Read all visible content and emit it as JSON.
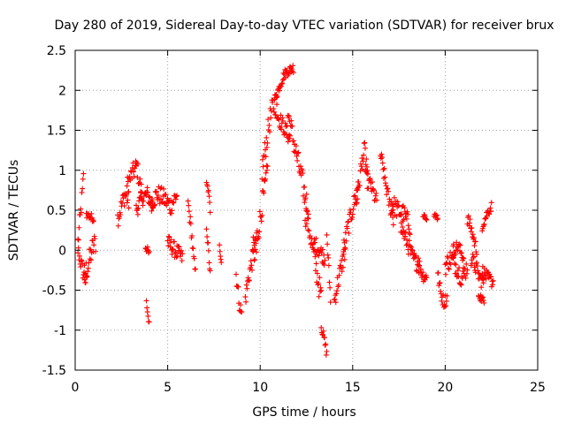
{
  "chart_data": {
    "type": "scatter",
    "title": "Day 280 of 2019, Sidereal Day-to-day VTEC variation (SDTVAR) for receiver brux",
    "xlabel": "GPS time / hours",
    "ylabel": "SDTVAR / TECUs",
    "xlim": [
      0,
      25
    ],
    "ylim": [
      -1.5,
      2.5
    ],
    "xticks": [
      0,
      5,
      10,
      15,
      20,
      25
    ],
    "yticks": [
      -1.5,
      -1,
      -0.5,
      0,
      0.5,
      1,
      1.5,
      2,
      2.5
    ],
    "xtick_labels": [
      "0",
      "5",
      "10",
      "15",
      "20",
      "25"
    ],
    "ytick_labels": [
      "-1.5",
      "-1",
      "-0.5",
      "0",
      "0.5",
      "1",
      "1.5",
      "2",
      "2.5"
    ],
    "grid": true,
    "legend": "none",
    "marker": "+",
    "color": "#ff0000",
    "series": [
      {
        "name": "SDTVAR",
        "segments": [
          {
            "x0": 0.15,
            "x1": 0.45,
            "y": [
              0.1,
              0.35,
              0.6,
              0.9
            ],
            "spread": 0.12
          },
          {
            "x0": 0.15,
            "x1": 0.6,
            "y": [
              0.0,
              -0.15,
              -0.3,
              -0.4
            ],
            "spread": 0.1
          },
          {
            "x0": 0.5,
            "x1": 1.1,
            "y": [
              -0.3,
              -0.2,
              0.0,
              0.1
            ],
            "spread": 0.15
          },
          {
            "x0": 0.6,
            "x1": 1.0,
            "y": [
              0.45,
              0.42,
              0.4
            ],
            "spread": 0.05
          },
          {
            "x0": 2.3,
            "x1": 2.9,
            "y": [
              0.4,
              0.55,
              0.7,
              0.6
            ],
            "spread": 0.12
          },
          {
            "x0": 2.8,
            "x1": 3.6,
            "y": [
              0.8,
              0.95,
              1.05,
              0.7
            ],
            "spread": 0.12
          },
          {
            "x0": 3.3,
            "x1": 4.2,
            "y": [
              0.5,
              0.65,
              0.7,
              0.55
            ],
            "spread": 0.1
          },
          {
            "x0": 3.8,
            "x1": 4.0,
            "y": [
              0.05,
              0.0,
              -0.05
            ],
            "spread": 0.05
          },
          {
            "x0": 3.85,
            "x1": 4.0,
            "y": [
              -0.65,
              -0.8,
              -0.92
            ],
            "spread": 0.03
          },
          {
            "x0": 4.1,
            "x1": 5.5,
            "y": [
              0.6,
              0.7,
              0.65,
              0.55,
              0.7
            ],
            "spread": 0.12
          },
          {
            "x0": 5.0,
            "x1": 5.8,
            "y": [
              0.1,
              0.0,
              -0.1
            ],
            "spread": 0.1
          },
          {
            "x0": 6.1,
            "x1": 6.5,
            "y": [
              0.6,
              0.4,
              0.2,
              -0.1,
              -0.3
            ],
            "spread": 0.08
          },
          {
            "x0": 7.1,
            "x1": 7.3,
            "y": [
              0.3,
              0.1,
              -0.1,
              -0.3
            ],
            "spread": 0.06
          },
          {
            "x0": 7.1,
            "x1": 7.3,
            "y": [
              0.82,
              0.75,
              0.5
            ],
            "spread": 0.05
          },
          {
            "x0": 7.8,
            "x1": 7.9,
            "y": [
              0.1,
              -0.05,
              -0.15
            ],
            "spread": 0.05
          },
          {
            "x0": 8.7,
            "x1": 9.0,
            "y": [
              -0.3,
              -0.5,
              -0.7,
              -0.8
            ],
            "spread": 0.1
          },
          {
            "x0": 9.2,
            "x1": 9.8,
            "y": [
              -0.6,
              -0.3,
              -0.1,
              0.0
            ],
            "spread": 0.12
          },
          {
            "x0": 9.6,
            "x1": 10.4,
            "y": [
              0.0,
              0.2,
              0.6,
              1.0
            ],
            "spread": 0.15
          },
          {
            "x0": 10.1,
            "x1": 10.9,
            "y": [
              1.0,
              1.3,
              1.6,
              1.8,
              1.85
            ],
            "spread": 0.15
          },
          {
            "x0": 10.8,
            "x1": 11.8,
            "y": [
              1.9,
              2.05,
              2.2,
              2.25,
              2.28
            ],
            "spread": 0.06
          },
          {
            "x0": 10.9,
            "x1": 11.6,
            "y": [
              1.7,
              1.6,
              1.5,
              1.4
            ],
            "spread": 0.1
          },
          {
            "x0": 11.5,
            "x1": 12.6,
            "y": [
              1.7,
              1.4,
              1.1,
              0.8,
              0.5
            ],
            "spread": 0.15
          },
          {
            "x0": 12.4,
            "x1": 13.3,
            "y": [
              0.5,
              0.3,
              0.0,
              -0.3,
              -0.6
            ],
            "spread": 0.15
          },
          {
            "x0": 12.9,
            "x1": 13.5,
            "y": [
              0.1,
              0.0,
              -0.1
            ],
            "spread": 0.1
          },
          {
            "x0": 13.3,
            "x1": 13.6,
            "y": [
              -0.95,
              -1.1,
              -1.3
            ],
            "spread": 0.06
          },
          {
            "x0": 13.6,
            "x1": 13.8,
            "y": [
              0.2,
              -0.2,
              -0.6
            ],
            "spread": 0.08
          },
          {
            "x0": 14.0,
            "x1": 14.6,
            "y": [
              -0.65,
              -0.4,
              -0.2,
              0.0
            ],
            "spread": 0.12
          },
          {
            "x0": 14.5,
            "x1": 15.3,
            "y": [
              0.0,
              0.3,
              0.55,
              0.8
            ],
            "spread": 0.12
          },
          {
            "x0": 15.2,
            "x1": 15.8,
            "y": [
              0.6,
              0.85,
              1.1,
              1.25,
              1.0
            ],
            "spread": 0.12
          },
          {
            "x0": 15.7,
            "x1": 16.3,
            "y": [
              0.9,
              0.8,
              0.6
            ],
            "spread": 0.1
          },
          {
            "x0": 16.5,
            "x1": 17.2,
            "y": [
              1.2,
              0.9,
              0.6,
              0.4
            ],
            "spread": 0.1
          },
          {
            "x0": 17.1,
            "x1": 18.1,
            "y": [
              0.6,
              0.5,
              0.45,
              0.3
            ],
            "spread": 0.12
          },
          {
            "x0": 17.6,
            "x1": 18.6,
            "y": [
              0.3,
              0.1,
              -0.1,
              -0.2
            ],
            "spread": 0.1
          },
          {
            "x0": 18.5,
            "x1": 19.0,
            "y": [
              -0.1,
              -0.3,
              -0.35
            ],
            "spread": 0.08
          },
          {
            "x0": 18.8,
            "x1": 19.0,
            "y": [
              0.45,
              0.4
            ],
            "spread": 0.05
          },
          {
            "x0": 19.6,
            "x1": 20.1,
            "y": [
              -0.3,
              -0.55,
              -0.65,
              -0.6
            ],
            "spread": 0.08
          },
          {
            "x0": 19.4,
            "x1": 19.6,
            "y": [
              0.45,
              0.4
            ],
            "spread": 0.03
          },
          {
            "x0": 20.0,
            "x1": 21.2,
            "y": [
              -0.2,
              -0.1,
              -0.2,
              -0.35,
              -0.2
            ],
            "spread": 0.12
          },
          {
            "x0": 20.4,
            "x1": 21.0,
            "y": [
              0.0,
              0.05,
              -0.1
            ],
            "spread": 0.08
          },
          {
            "x0": 21.2,
            "x1": 21.7,
            "y": [
              0.4,
              0.3,
              0.15,
              0.0
            ],
            "spread": 0.08
          },
          {
            "x0": 21.4,
            "x1": 22.1,
            "y": [
              -0.1,
              -0.2,
              -0.35,
              -0.4
            ],
            "spread": 0.1
          },
          {
            "x0": 21.8,
            "x1": 22.1,
            "y": [
              -0.55,
              -0.65
            ],
            "spread": 0.05
          },
          {
            "x0": 22.0,
            "x1": 22.5,
            "y": [
              0.3,
              0.45,
              0.55
            ],
            "spread": 0.06
          },
          {
            "x0": 22.0,
            "x1": 22.6,
            "y": [
              -0.25,
              -0.35,
              -0.4
            ],
            "spread": 0.08
          }
        ]
      }
    ]
  }
}
